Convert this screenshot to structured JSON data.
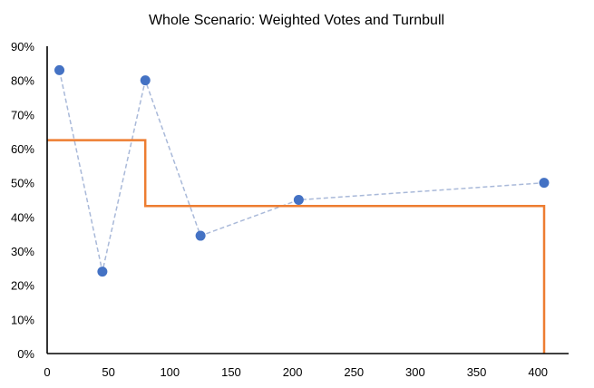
{
  "chart_data": {
    "type": "scatter",
    "title": "Whole Scenario: Weighted Votes and Turnbull",
    "xlabel": "",
    "ylabel": "",
    "xlim": [
      0,
      425
    ],
    "ylim": [
      0,
      0.9
    ],
    "x_ticks": [
      0,
      50,
      100,
      150,
      200,
      250,
      300,
      350,
      400
    ],
    "y_ticks": [
      0,
      0.1,
      0.2,
      0.3,
      0.4,
      0.5,
      0.6,
      0.7,
      0.8,
      0.9
    ],
    "y_tick_labels": [
      "0%",
      "10%",
      "20%",
      "30%",
      "40%",
      "50%",
      "60%",
      "70%",
      "80%",
      "90%"
    ],
    "grid": false,
    "legend": "none",
    "series": [
      {
        "kind": "scatter-dashed",
        "color": "#4472C4",
        "line_color": "#A9B9D9",
        "points": [
          {
            "x": 10,
            "y": 0.83
          },
          {
            "x": 45,
            "y": 0.24
          },
          {
            "x": 80,
            "y": 0.8
          },
          {
            "x": 125,
            "y": 0.345
          },
          {
            "x": 205,
            "y": 0.45
          },
          {
            "x": 405,
            "y": 0.5
          }
        ]
      },
      {
        "kind": "step",
        "color": "#ED7D31",
        "points": [
          {
            "x": 0,
            "y": 0.625
          },
          {
            "x": 80,
            "y": 0.625
          },
          {
            "x": 80,
            "y": 0.432
          },
          {
            "x": 405,
            "y": 0.432
          },
          {
            "x": 405,
            "y": 0
          }
        ]
      }
    ]
  }
}
